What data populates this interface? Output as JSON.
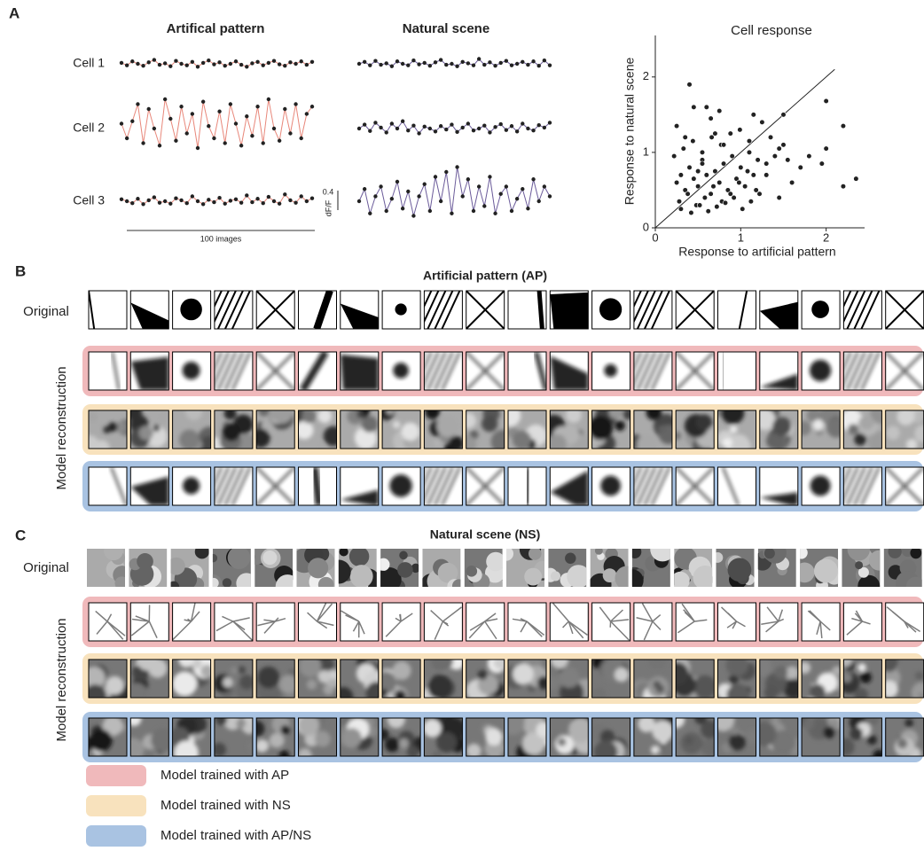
{
  "panel_a": {
    "label": "A",
    "titles": [
      "Artifical pattern",
      "Natural scene"
    ],
    "scale_bar": 0.4,
    "scale_unit": "dF/F",
    "time_label": "100 images",
    "colors": [
      "#e8877a",
      "#6b5b9a"
    ],
    "series": [
      {
        "cell": "Cell 1",
        "ap": [
          0.02,
          -0.03,
          0.05,
          0.0,
          -0.04,
          0.03,
          0.08,
          -0.02,
          0.01,
          -0.05,
          0.06,
          0.0,
          -0.03,
          0.04,
          -0.06,
          0.02,
          0.07,
          -0.01,
          0.03,
          -0.04,
          0.0,
          0.05,
          -0.02,
          -0.06,
          0.01,
          0.04,
          -0.03,
          0.02,
          0.06,
          -0.01,
          -0.04,
          0.03,
          0.0,
          0.05,
          -0.02,
          0.04
        ],
        "ns": [
          0.0,
          0.04,
          -0.03,
          0.06,
          -0.02,
          0.01,
          -0.05,
          0.05,
          0.0,
          -0.03,
          0.07,
          -0.01,
          0.02,
          -0.04,
          0.03,
          0.08,
          -0.02,
          0.0,
          -0.05,
          0.04,
          0.01,
          -0.03,
          0.1,
          -0.02,
          0.03,
          -0.04,
          0.02,
          0.06,
          -0.03,
          0.0,
          0.04,
          -0.02,
          0.05,
          -0.04,
          0.07,
          -0.03
        ]
      },
      {
        "cell": "Cell 2",
        "ap": [
          0.1,
          -0.2,
          0.15,
          0.5,
          -0.3,
          0.4,
          0.0,
          -0.35,
          0.6,
          0.2,
          -0.25,
          0.45,
          -0.1,
          0.3,
          -0.4,
          0.55,
          0.05,
          -0.2,
          0.35,
          -0.3,
          0.5,
          0.1,
          -0.35,
          0.25,
          -0.15,
          0.45,
          -0.3,
          0.6,
          0.0,
          -0.25,
          0.4,
          -0.1,
          0.5,
          -0.2,
          0.3,
          0.45
        ],
        "ns": [
          0.0,
          0.08,
          -0.05,
          0.12,
          0.02,
          -0.08,
          0.1,
          0.0,
          0.15,
          -0.04,
          0.06,
          -0.1,
          0.04,
          0.0,
          -0.06,
          0.05,
          -0.02,
          0.08,
          -0.07,
          0.02,
          0.1,
          -0.04,
          0.0,
          0.06,
          -0.08,
          0.03,
          0.09,
          -0.03,
          0.05,
          -0.06,
          0.1,
          0.0,
          -0.04,
          0.07,
          0.02,
          0.12
        ]
      },
      {
        "cell": "Cell 3",
        "ap": [
          0.04,
          0.0,
          -0.04,
          0.05,
          -0.06,
          0.02,
          0.08,
          -0.03,
          0.0,
          -0.05,
          0.06,
          0.02,
          -0.04,
          0.1,
          0.0,
          -0.06,
          0.03,
          -0.02,
          0.07,
          -0.05,
          0.01,
          0.04,
          -0.03,
          0.12,
          -0.02,
          0.05,
          -0.04,
          0.09,
          0.0,
          -0.05,
          0.14,
          0.02,
          -0.03,
          0.1,
          0.0,
          0.06
        ],
        "ns": [
          0.0,
          0.25,
          -0.25,
          0.1,
          0.3,
          -0.2,
          0.05,
          0.4,
          -0.15,
          0.2,
          -0.3,
          0.1,
          0.35,
          -0.2,
          0.5,
          0.0,
          0.6,
          -0.25,
          0.7,
          0.1,
          0.45,
          -0.2,
          0.3,
          -0.1,
          0.5,
          -0.25,
          0.15,
          0.3,
          -0.2,
          0.05,
          0.25,
          -0.15,
          0.45,
          0.0,
          0.3,
          0.1
        ]
      }
    ]
  },
  "chart_data": {
    "type": "scatter",
    "title": "Cell response",
    "x_label": "Response to artificial pattern",
    "y_label": "Response to natural scene",
    "xlim": [
      0,
      2.45
    ],
    "ylim": [
      0,
      2.55
    ],
    "xticks": [
      0,
      1,
      2
    ],
    "yticks": [
      0,
      1,
      2
    ],
    "color": "#222222",
    "identity_line": [
      0,
      2.1
    ],
    "x": [
      0.25,
      0.3,
      0.35,
      0.4,
      0.45,
      0.5,
      0.55,
      0.6,
      0.65,
      0.7,
      0.75,
      0.8,
      0.85,
      0.9,
      0.95,
      1.0,
      1.05,
      1.1,
      1.15,
      1.2,
      0.28,
      0.38,
      0.48,
      0.58,
      0.68,
      0.78,
      0.88,
      0.98,
      1.08,
      1.18,
      1.3,
      1.4,
      1.5,
      0.22,
      0.33,
      0.44,
      0.55,
      0.66,
      0.77,
      0.88,
      0.99,
      1.1,
      1.25,
      1.35,
      1.45,
      1.55,
      0.3,
      0.42,
      0.52,
      0.62,
      0.72,
      0.82,
      0.92,
      1.02,
      1.12,
      1.22,
      0.4,
      2.35,
      2.2,
      2.0,
      2.2,
      2.0,
      1.95,
      0.6,
      0.75,
      1.7,
      1.8,
      1.6,
      1.5,
      1.45,
      0.25,
      0.35,
      0.5,
      0.65,
      0.8,
      1.15,
      1.3,
      0.45,
      0.55,
      0.7
    ],
    "y": [
      0.6,
      0.7,
      0.5,
      0.8,
      0.65,
      0.55,
      0.9,
      0.7,
      0.45,
      0.75,
      0.6,
      0.85,
      0.5,
      0.95,
      0.65,
      0.8,
      0.55,
      1.0,
      0.7,
      0.9,
      0.35,
      0.45,
      0.3,
      0.4,
      0.55,
      0.35,
      0.45,
      0.6,
      0.75,
      0.5,
      0.85,
      0.95,
      1.1,
      0.95,
      1.05,
      1.15,
      1.0,
      1.2,
      1.1,
      1.25,
      1.3,
      1.15,
      1.4,
      1.2,
      1.05,
      0.9,
      0.25,
      0.2,
      0.3,
      0.22,
      0.28,
      0.33,
      0.4,
      0.25,
      0.35,
      0.45,
      1.9,
      0.65,
      1.35,
      1.68,
      0.55,
      1.05,
      0.85,
      1.6,
      1.55,
      0.8,
      0.95,
      0.6,
      1.5,
      0.4,
      1.35,
      1.2,
      0.75,
      1.45,
      1.1,
      1.5,
      0.7,
      1.6,
      0.85,
      1.25
    ]
  },
  "panel_b": {
    "label": "B",
    "title": "Artificial pattern (AP)",
    "original": "Original",
    "model": "Model reconstruction"
  },
  "panel_c": {
    "label": "C",
    "title": "Natural scene (NS)",
    "original": "Original",
    "model": "Model reconstruction"
  },
  "legend": [
    {
      "label": "Model trained with AP",
      "color": "#f0b9bb"
    },
    {
      "label": "Model trained with NS",
      "color": "#f8e2bd"
    },
    {
      "label": "Model trained with AP/NS",
      "color": "#a9c3e2"
    }
  ]
}
